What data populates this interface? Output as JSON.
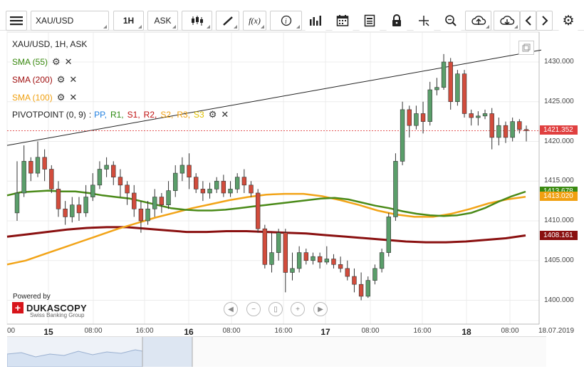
{
  "toolbar": {
    "instrument": "XAU/USD",
    "period": "1H",
    "side": "ASK",
    "icons": [
      "menu-icon",
      "candles-icon",
      "draw-icon",
      "formula-icon",
      "info-icon",
      "volume-icon",
      "calendar-icon",
      "news-icon",
      "lock-icon",
      "crosshair-icon",
      "zoom-icon",
      "upload-icon",
      "download-icon",
      "prev-icon",
      "next-icon",
      "settings-icon"
    ],
    "formula_label": "f(x)"
  },
  "chart": {
    "title": "XAU/USD, 1H, ASK",
    "indicators": [
      {
        "label": "SMA (55)",
        "color": "#3a8a10"
      },
      {
        "label": "SMA (200)",
        "color": "#a01010"
      },
      {
        "label": "SMA (100)",
        "color": "#f0a010"
      }
    ],
    "pivot": {
      "label": "PIVOTPOINT (0, 9)",
      "separator": ":",
      "levels": [
        {
          "name": "PP",
          "color": "#2080e0"
        },
        {
          "name": "R1",
          "color": "#2a8a10"
        },
        {
          "name": "S1",
          "color": "#c01010"
        },
        {
          "name": "R2",
          "color": "#c01010"
        },
        {
          "name": "S2",
          "color": "#f0a010"
        },
        {
          "name": "R3",
          "color": "#f0a010"
        },
        {
          "name": "S3",
          "color": "#e0c000"
        }
      ]
    },
    "y_labels": [
      "1430.000",
      "1425.000",
      "1420.000",
      "1415.000",
      "1410.000",
      "1405.000",
      "1400.000"
    ],
    "y_values": [
      1430,
      1425,
      1420,
      1415,
      1410,
      1405,
      1400
    ],
    "x_labels": [
      {
        "text": "00",
        "big": false
      },
      {
        "text": "15",
        "big": true
      },
      {
        "text": "08:00",
        "big": false
      },
      {
        "text": "16:00",
        "big": false
      },
      {
        "text": "16",
        "big": true
      },
      {
        "text": "08:00",
        "big": false
      },
      {
        "text": "16:00",
        "big": false
      },
      {
        "text": "17",
        "big": true
      },
      {
        "text": "08:00",
        "big": false
      },
      {
        "text": "16:00",
        "big": false
      },
      {
        "text": "18",
        "big": true
      },
      {
        "text": "08:00",
        "big": false
      },
      {
        "text": "18.07.2019",
        "big": false
      }
    ],
    "price_tags": [
      {
        "text": "1421.352",
        "color": "#e04040",
        "value": 1421.352
      },
      {
        "text": "1413.678",
        "color": "#3a8a10",
        "value": 1413.678
      },
      {
        "text": "1413.020",
        "color": "#f0a010",
        "value": 1413.02
      },
      {
        "text": "1408.161",
        "color": "#8a1010",
        "value": 1408.161
      }
    ],
    "current_price": 1421.352
  },
  "branding": {
    "powered_by": "Powered by",
    "name": "DUKASCOPY",
    "sub": "Swiss Banking Group"
  },
  "nav_buttons": [
    "back-icon",
    "zoom-out-icon",
    "fit-icon",
    "zoom-in-icon",
    "play-icon"
  ],
  "chart_data": {
    "type": "candlestick",
    "candles": [
      [
        1411,
        1413.5,
        1410,
        1417.5
      ],
      [
        1413.5,
        1417.5,
        1413,
        1419.5
      ],
      [
        1417.5,
        1416,
        1415,
        1418
      ],
      [
        1416,
        1418,
        1415.5,
        1420
      ],
      [
        1418,
        1416.5,
        1415,
        1419
      ],
      [
        1416.5,
        1414,
        1413.5,
        1417
      ],
      [
        1414,
        1411.5,
        1410.5,
        1415
      ],
      [
        1411.5,
        1410.5,
        1409.5,
        1412.5
      ],
      [
        1410.5,
        1412,
        1409.8,
        1413
      ],
      [
        1412,
        1411,
        1410,
        1413
      ],
      [
        1411,
        1413,
        1410.5,
        1414.5
      ],
      [
        1413,
        1414.5,
        1412.5,
        1416
      ],
      [
        1414.5,
        1416.5,
        1414,
        1417.5
      ],
      [
        1416.5,
        1417,
        1415.5,
        1418
      ],
      [
        1417,
        1415.5,
        1414.5,
        1417.5
      ],
      [
        1415.5,
        1414.5,
        1413,
        1416.5
      ],
      [
        1414.5,
        1413.5,
        1412,
        1415
      ],
      [
        1413.5,
        1411.5,
        1410.5,
        1414.5
      ],
      [
        1411.5,
        1410,
        1408.5,
        1412.5
      ],
      [
        1410,
        1411.5,
        1409.5,
        1412.5
      ],
      [
        1411.5,
        1413,
        1410.5,
        1414
      ],
      [
        1413,
        1412,
        1411,
        1413.5
      ],
      [
        1412,
        1413.8,
        1411.5,
        1415
      ],
      [
        1413.8,
        1416,
        1413,
        1417
      ],
      [
        1416,
        1417,
        1415,
        1418
      ],
      [
        1417,
        1415.5,
        1414,
        1418.5
      ],
      [
        1415.5,
        1414,
        1413.5,
        1416
      ],
      [
        1414,
        1413.5,
        1412.5,
        1415
      ],
      [
        1413.5,
        1414,
        1412.8,
        1414.8
      ],
      [
        1414,
        1415,
        1413.5,
        1415.5
      ],
      [
        1415,
        1413.5,
        1413,
        1415.8
      ],
      [
        1413.5,
        1414,
        1413,
        1415
      ],
      [
        1414,
        1415.5,
        1413.5,
        1416
      ],
      [
        1415.5,
        1414.5,
        1413.5,
        1416.5
      ],
      [
        1414.5,
        1413.5,
        1413,
        1415
      ],
      [
        1413.5,
        1409,
        1408.5,
        1414
      ],
      [
        1409,
        1404.5,
        1404,
        1409.5
      ],
      [
        1404.5,
        1406,
        1403.5,
        1408.5
      ],
      [
        1406,
        1408.5,
        1405,
        1409
      ],
      [
        1408.5,
        1403.5,
        1401,
        1409
      ],
      [
        1403.5,
        1404,
        1402.5,
        1406
      ],
      [
        1404,
        1406,
        1403.5,
        1406.8
      ],
      [
        1406,
        1405,
        1404.5,
        1406.5
      ],
      [
        1405,
        1405.5,
        1404.5,
        1406
      ],
      [
        1405.5,
        1404.8,
        1404,
        1406
      ],
      [
        1404.8,
        1405.2,
        1404.5,
        1406.8
      ],
      [
        1405.2,
        1404.5,
        1404,
        1405.8
      ],
      [
        1404.5,
        1404,
        1403.5,
        1405.5
      ],
      [
        1404,
        1403,
        1402.5,
        1405
      ],
      [
        1403,
        1402,
        1401,
        1404
      ],
      [
        1402,
        1400.5,
        1400,
        1403.5
      ],
      [
        1400.5,
        1402.5,
        1400.3,
        1403
      ],
      [
        1402.5,
        1404,
        1402,
        1404.5
      ],
      [
        1404,
        1406,
        1403.5,
        1406.5
      ],
      [
        1406,
        1410.5,
        1405.5,
        1411
      ],
      [
        1410.5,
        1417.5,
        1410,
        1418.5
      ],
      [
        1417.5,
        1424,
        1417,
        1425
      ],
      [
        1424,
        1422,
        1420.5,
        1424.5
      ],
      [
        1422,
        1423.5,
        1421.5,
        1424.5
      ],
      [
        1423.5,
        1422.5,
        1421,
        1425
      ],
      [
        1422.5,
        1426.5,
        1422,
        1427.5
      ],
      [
        1426.5,
        1426.8,
        1425.8,
        1428
      ],
      [
        1426.8,
        1430,
        1426.5,
        1431
      ],
      [
        1430,
        1425,
        1424,
        1430.5
      ],
      [
        1425,
        1428.5,
        1424.5,
        1429
      ],
      [
        1428.5,
        1423.5,
        1423,
        1429
      ],
      [
        1423.5,
        1423,
        1422,
        1424
      ],
      [
        1423,
        1423.2,
        1422,
        1423.8
      ],
      [
        1423.2,
        1423.5,
        1422.8,
        1424
      ],
      [
        1423.5,
        1420.5,
        1419,
        1424.2
      ],
      [
        1420.5,
        1422,
        1419.5,
        1423
      ],
      [
        1422,
        1420.5,
        1419.8,
        1422.5
      ],
      [
        1420.5,
        1422.5,
        1420,
        1423
      ],
      [
        1422.5,
        1421.5,
        1421,
        1422.8
      ],
      [
        1421.5,
        1421.352,
        1420,
        1422
      ]
    ],
    "sma55": [
      1413.2,
      1413.6,
      1413.7,
      1413.8,
      1413.7,
      1413.7,
      1413.5,
      1413.2,
      1413.0,
      1412.8,
      1412.4,
      1412.0,
      1411.6,
      1411.4,
      1411.3,
      1411.3,
      1411.4,
      1411.6,
      1411.8,
      1412.0,
      1412.2,
      1412.4,
      1412.6,
      1412.8,
      1412.9,
      1412.7,
      1412.3,
      1411.9,
      1411.6,
      1411.2,
      1410.9,
      1410.7,
      1410.6,
      1410.7,
      1411.0,
      1411.6,
      1412.4,
      1413.1,
      1413.678
    ],
    "sma100": [
      1404.5,
      1405.0,
      1405.8,
      1406.6,
      1407.4,
      1408.2,
      1409.0,
      1409.7,
      1410.4,
      1411.0,
      1411.6,
      1412.1,
      1412.6,
      1413.0,
      1413.3,
      1413.4,
      1413.4,
      1413.1,
      1412.6,
      1412.0,
      1411.3,
      1410.8,
      1410.5,
      1410.5,
      1410.9,
      1411.5,
      1412.2,
      1412.7,
      1413.02
    ],
    "sma200": [
      1408,
      1408.3,
      1408.6,
      1408.9,
      1409.1,
      1409.2,
      1409.2,
      1409.0,
      1408.8,
      1408.6,
      1408.6,
      1408.7,
      1408.7,
      1408.6,
      1408.5,
      1408.4,
      1408.2,
      1408.0,
      1407.8,
      1407.6,
      1407.4,
      1407.3,
      1407.3,
      1407.4,
      1407.6,
      1407.8,
      1408.161
    ],
    "trendline": [
      1419.5,
      1431.5
    ],
    "ylim": [
      1398,
      1433
    ]
  }
}
